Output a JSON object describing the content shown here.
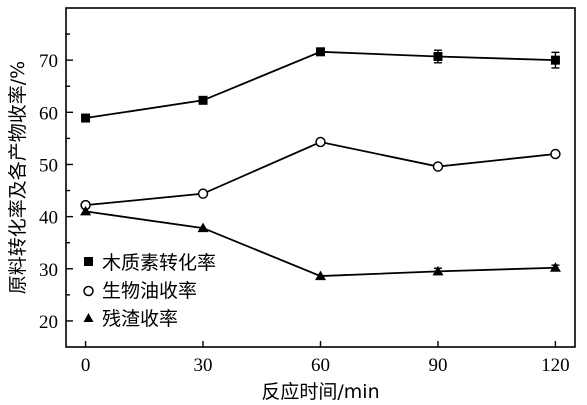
{
  "chart_data": {
    "type": "line",
    "x": [
      0,
      30,
      60,
      90,
      120
    ],
    "xticks": [
      "0",
      "30",
      "60",
      "90",
      "120"
    ],
    "yticks": [
      "20",
      "30",
      "40",
      "50",
      "60",
      "70"
    ],
    "xlim": [
      -5,
      125
    ],
    "ylim": [
      15,
      80
    ],
    "xlabel": "反应时间/min",
    "ylabel": "原料转化率及各产物收率/%",
    "legend_position": "left-lower",
    "grid": false,
    "series": [
      {
        "name": "木质素转化率",
        "marker": "square-filled",
        "values": [
          58.9,
          62.3,
          71.6,
          70.7,
          70.0
        ],
        "error": [
          0,
          0,
          0,
          1.2,
          1.5
        ]
      },
      {
        "name": "生物油收率",
        "marker": "circle-open",
        "values": [
          42.2,
          44.4,
          54.3,
          49.6,
          52.0
        ],
        "error": [
          0,
          0,
          0,
          0,
          0
        ]
      },
      {
        "name": "残渣收率",
        "marker": "triangle-filled",
        "values": [
          41.0,
          37.8,
          28.6,
          29.5,
          30.2
        ],
        "error": [
          0,
          0,
          0,
          0.6,
          0.5
        ]
      }
    ]
  }
}
